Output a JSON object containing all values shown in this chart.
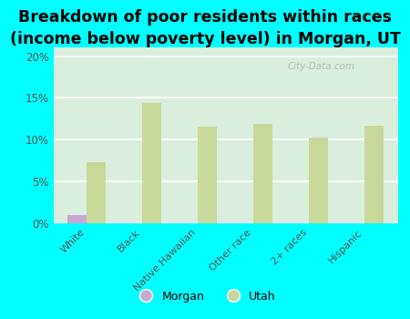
{
  "title": "Breakdown of poor residents within races\n(income below poverty level) in Morgan, UT",
  "categories": [
    "White",
    "Black",
    "Native Hawaiian",
    "Other race",
    "2+ races",
    "Hispanic"
  ],
  "morgan_values": [
    1.0,
    0.0,
    0.0,
    0.0,
    0.0,
    0.0
  ],
  "utah_values": [
    7.3,
    14.4,
    11.6,
    11.9,
    10.2,
    11.7
  ],
  "morgan_color": "#c9a8d4",
  "utah_color": "#c8d89a",
  "background_color": "#daeedd",
  "outer_background": "#00ffff",
  "ylim": [
    0,
    21
  ],
  "yticks": [
    0,
    5,
    10,
    15,
    20
  ],
  "ytick_labels": [
    "0%",
    "5%",
    "10%",
    "15%",
    "20%"
  ],
  "bar_width": 0.35,
  "title_fontsize": 12.5,
  "watermark": "City-Data.com"
}
